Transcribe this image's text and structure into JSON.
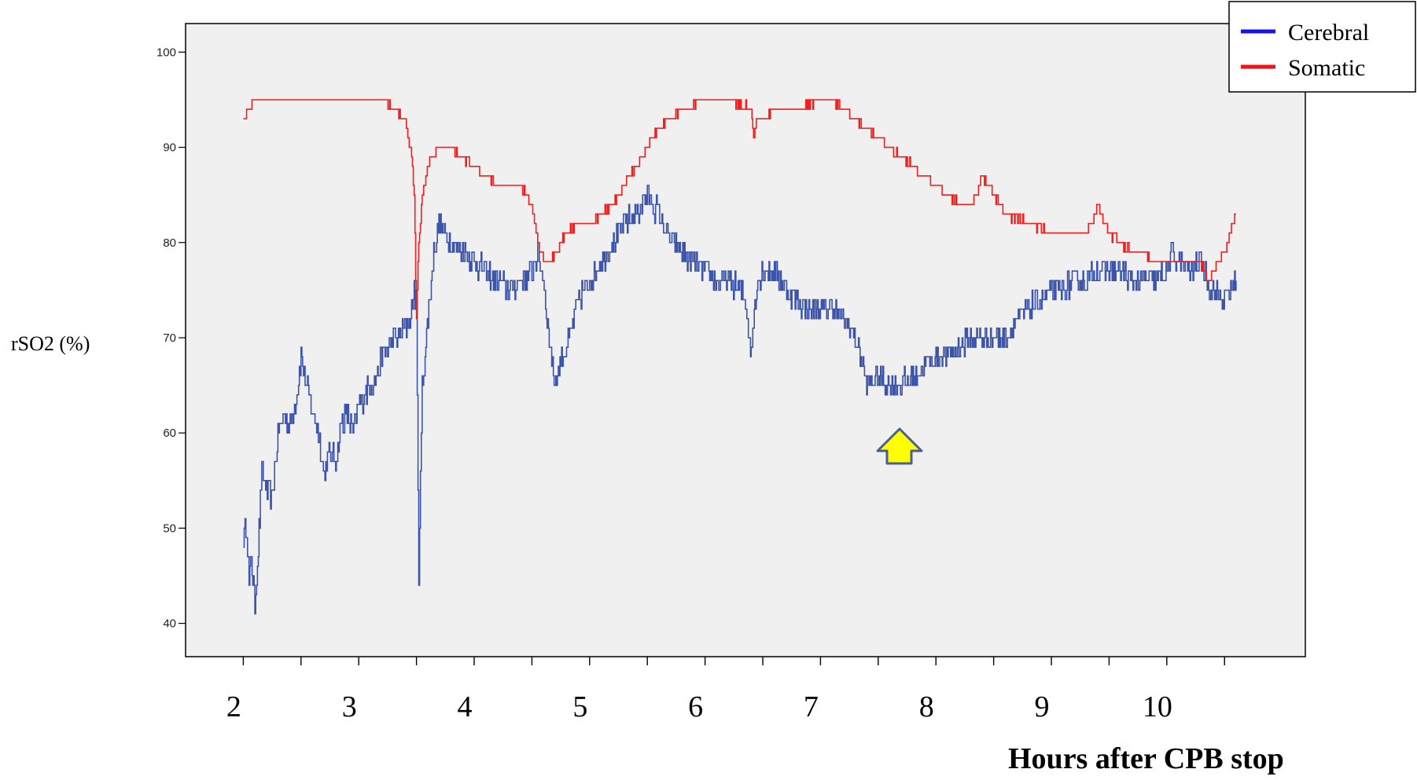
{
  "chart_data": {
    "type": "line",
    "xlabel": "Hours after CPB stop",
    "ylabel": "rSO2 (%)",
    "xlim": [
      1.5,
      11.2
    ],
    "ylim": [
      36.5,
      103
    ],
    "y_ticks": [
      40,
      50,
      60,
      70,
      80,
      90,
      100
    ],
    "x_tick_labels": [
      "2",
      "3",
      "4",
      "5",
      "6",
      "7",
      "8",
      "9",
      "10"
    ],
    "grid": false,
    "legend_position": "top-right",
    "plot_background": "#f0f0f0",
    "series": [
      {
        "name": "Cerebral",
        "color": "#3c55aa",
        "legend_color": "#1414e6",
        "noise": 1.3,
        "x": [
          2.0,
          2.03,
          2.05,
          2.07,
          2.1,
          2.13,
          2.16,
          2.2,
          2.25,
          2.3,
          2.35,
          2.4,
          2.45,
          2.5,
          2.55,
          2.6,
          2.65,
          2.7,
          2.75,
          2.8,
          2.85,
          2.9,
          2.95,
          3.0,
          3.05,
          3.1,
          3.15,
          3.2,
          3.25,
          3.3,
          3.35,
          3.4,
          3.45,
          3.48,
          3.5,
          3.52,
          3.55,
          3.6,
          3.65,
          3.7,
          3.75,
          3.8,
          3.9,
          4.0,
          4.1,
          4.2,
          4.3,
          4.4,
          4.5,
          4.55,
          4.6,
          4.65,
          4.7,
          4.75,
          4.8,
          4.9,
          5.0,
          5.1,
          5.2,
          5.3,
          5.4,
          5.5,
          5.55,
          5.6,
          5.7,
          5.8,
          5.9,
          6.0,
          6.1,
          6.2,
          6.3,
          6.35,
          6.4,
          6.42,
          6.45,
          6.5,
          6.6,
          6.7,
          6.8,
          6.9,
          7.0,
          7.1,
          7.2,
          7.3,
          7.35,
          7.4,
          7.5,
          7.6,
          7.7,
          7.8,
          7.9,
          8.0,
          8.1,
          8.2,
          8.3,
          8.4,
          8.5,
          8.6,
          8.7,
          8.8,
          8.9,
          9.0,
          9.1,
          9.2,
          9.3,
          9.4,
          9.5,
          9.6,
          9.7,
          9.8,
          9.9,
          10.0,
          10.05,
          10.1,
          10.2,
          10.3,
          10.35,
          10.4,
          10.5,
          10.6
        ],
        "values": [
          49,
          50,
          44,
          47,
          42,
          48,
          56,
          54,
          53,
          60,
          62,
          61,
          63,
          68,
          65,
          62,
          60,
          56,
          58,
          57,
          61,
          62,
          60,
          63,
          64,
          65,
          66,
          68,
          69,
          70,
          70,
          71,
          72,
          75,
          73,
          45,
          65,
          72,
          79,
          82,
          81,
          80,
          79,
          78,
          77,
          76,
          75,
          76,
          77,
          79,
          76,
          70,
          65,
          68,
          69,
          74,
          76,
          78,
          80,
          82,
          83,
          85,
          84,
          83,
          80,
          79,
          78,
          77,
          76,
          76,
          75,
          74,
          68,
          72,
          76,
          77,
          77,
          75,
          74,
          73,
          73,
          73,
          72,
          70,
          68,
          65,
          66,
          65,
          65,
          66,
          67,
          68,
          68,
          69,
          70,
          70,
          70,
          70,
          72,
          73,
          74,
          75,
          75,
          76,
          76,
          77,
          77,
          77,
          76,
          76,
          76,
          77,
          79,
          78,
          77,
          78,
          76,
          75,
          74,
          76
        ]
      },
      {
        "name": "Somatic",
        "color": "#ee2020",
        "legend_color": "#f01414",
        "noise": 0.3,
        "x": [
          2.0,
          2.05,
          2.1,
          2.2,
          2.5,
          3.0,
          3.2,
          3.3,
          3.4,
          3.45,
          3.48,
          3.5,
          3.52,
          3.55,
          3.6,
          3.65,
          3.7,
          3.8,
          4.0,
          4.1,
          4.2,
          4.3,
          4.4,
          4.5,
          4.55,
          4.6,
          4.65,
          4.7,
          4.8,
          4.9,
          5.0,
          5.1,
          5.2,
          5.3,
          5.4,
          5.5,
          5.6,
          5.8,
          6.0,
          6.2,
          6.4,
          6.42,
          6.45,
          6.5,
          6.6,
          6.8,
          7.0,
          7.1,
          7.2,
          7.3,
          7.4,
          7.6,
          7.8,
          8.0,
          8.2,
          8.3,
          8.35,
          8.4,
          8.5,
          8.6,
          8.8,
          9.0,
          9.2,
          9.3,
          9.35,
          9.4,
          9.5,
          9.6,
          9.7,
          9.8,
          9.9,
          10.0,
          10.1,
          10.2,
          10.3,
          10.35,
          10.4,
          10.5,
          10.6
        ],
        "values": [
          93,
          94,
          95,
          95,
          95,
          95,
          95,
          94,
          93,
          90,
          85,
          72,
          80,
          85,
          88,
          89,
          90,
          90,
          88,
          87,
          86,
          86,
          86,
          84,
          80,
          78,
          78,
          79,
          81,
          82,
          82,
          83,
          84,
          86,
          88,
          90,
          92,
          94,
          95,
          95,
          94,
          91,
          93,
          93,
          94,
          94,
          95,
          95,
          94,
          93,
          92,
          90,
          88,
          86,
          84,
          84,
          85,
          87,
          85,
          83,
          82,
          81,
          81,
          81,
          82,
          84,
          81,
          80,
          79,
          79,
          78,
          78,
          78,
          78,
          78,
          76,
          77,
          79,
          83
        ]
      }
    ]
  }
}
